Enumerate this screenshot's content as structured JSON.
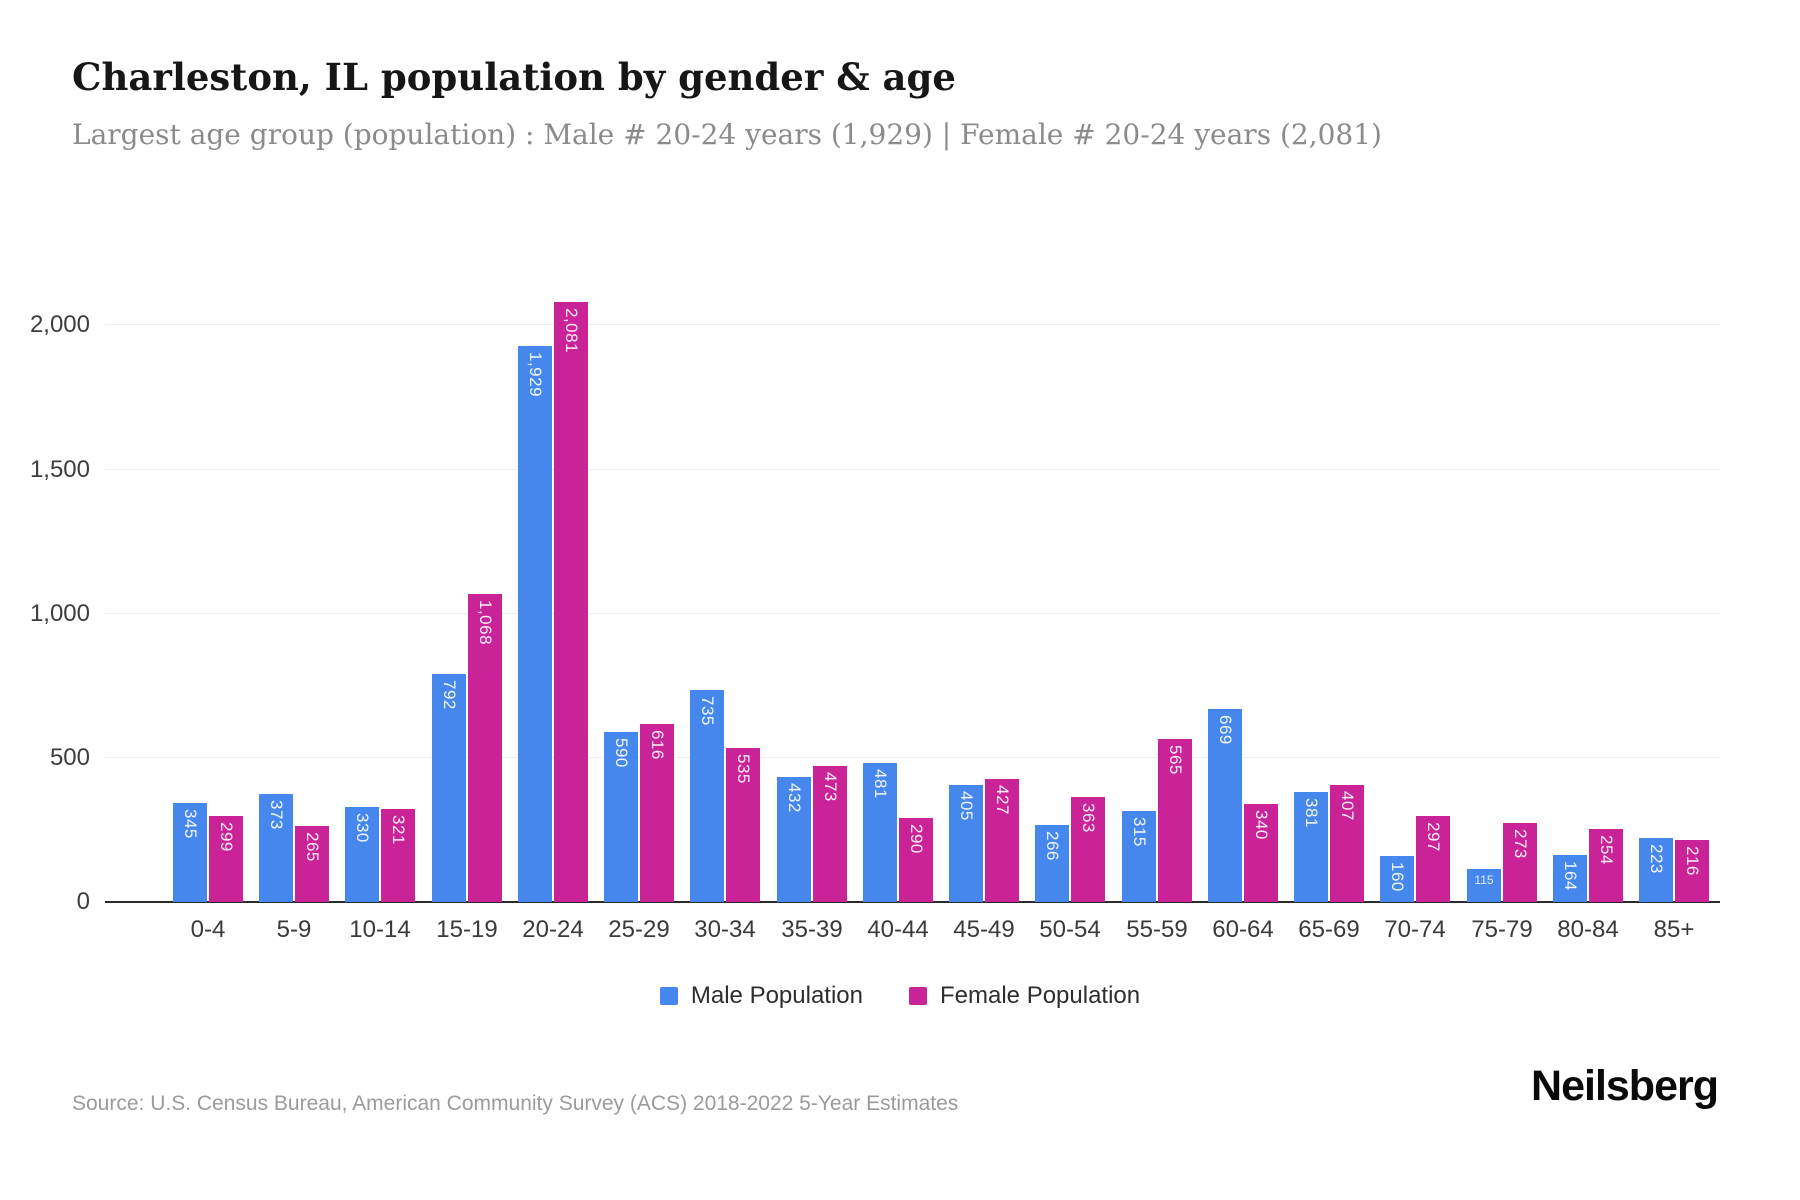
{
  "chart_data": {
    "type": "bar",
    "title": "Charleston, IL population by gender & age",
    "subtitle": "Largest age group (population) : Male # 20-24 years (1,929) | Female # 20-24 years (2,081)",
    "categories": [
      "0-4",
      "5-9",
      "10-14",
      "15-19",
      "20-24",
      "25-29",
      "30-34",
      "35-39",
      "40-44",
      "45-49",
      "50-54",
      "55-59",
      "60-64",
      "65-69",
      "70-74",
      "75-79",
      "80-84",
      "85+"
    ],
    "series": [
      {
        "name": "Male Population",
        "key": "male",
        "color": "#4687ee",
        "values": [
          345,
          373,
          330,
          792,
          1929,
          590,
          735,
          432,
          481,
          405,
          266,
          315,
          669,
          381,
          160,
          115,
          164,
          223
        ]
      },
      {
        "name": "Female Population",
        "key": "female",
        "color": "#ca2397",
        "values": [
          299,
          265,
          321,
          1068,
          2081,
          616,
          535,
          473,
          290,
          427,
          363,
          565,
          340,
          407,
          297,
          273,
          254,
          216
        ]
      }
    ],
    "y_ticks": [
      0,
      500,
      1000,
      1500,
      2000
    ],
    "ylim": [
      0,
      2225
    ],
    "grid": true,
    "legend_position": "bottom",
    "xlabel": "",
    "ylabel": ""
  },
  "footer": {
    "source": "Source: U.S. Census Bureau, American Community Survey (ACS) 2018-2022 5-Year Estimates",
    "brand": "Neilsberg"
  }
}
